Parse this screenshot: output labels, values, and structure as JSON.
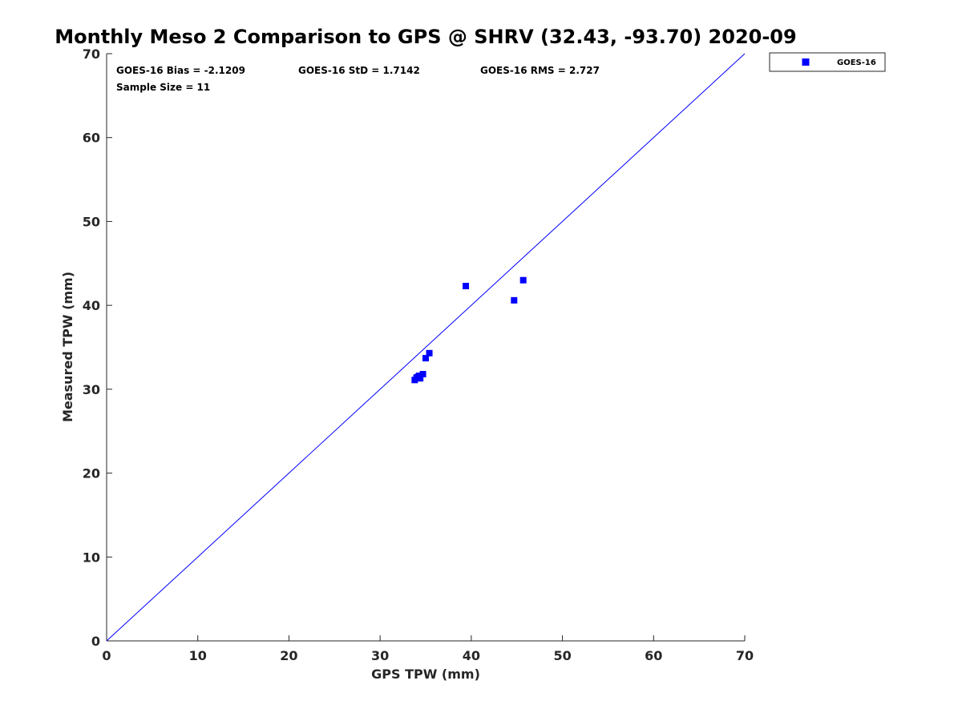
{
  "chart_data": {
    "type": "scatter",
    "title": "Monthly Meso 2 Comparison to GPS @ SHRV (32.43, -93.70) 2020-09",
    "xlabel": "GPS TPW (mm)",
    "ylabel": "Measured TPW (mm)",
    "xlim": [
      0,
      70
    ],
    "ylim": [
      0,
      70
    ],
    "x_ticks": [
      0,
      10,
      20,
      30,
      40,
      50,
      60,
      70
    ],
    "y_ticks": [
      0,
      10,
      20,
      30,
      40,
      50,
      60,
      70
    ],
    "grid": false,
    "legend_position": "outside-top-right",
    "stats": {
      "bias": "GOES-16 Bias = -2.1209",
      "std": "GOES-16 StD = 1.7142",
      "rms": "GOES-16 RMS = 2.727",
      "sample_size": "Sample Size = 11"
    },
    "reference_line": {
      "x": [
        0,
        70
      ],
      "y": [
        0,
        70
      ],
      "color": "#0000ff"
    },
    "series": [
      {
        "name": "GOES-16",
        "marker": "square",
        "color": "#0000ff",
        "x": [
          33.8,
          34.2,
          34.4,
          34.7,
          35.0,
          35.4,
          39.4,
          44.7,
          45.7,
          34.0,
          34.3
        ],
        "y": [
          31.1,
          31.5,
          31.3,
          31.8,
          33.7,
          34.3,
          42.3,
          40.6,
          43.0,
          31.4,
          31.6
        ]
      }
    ]
  }
}
